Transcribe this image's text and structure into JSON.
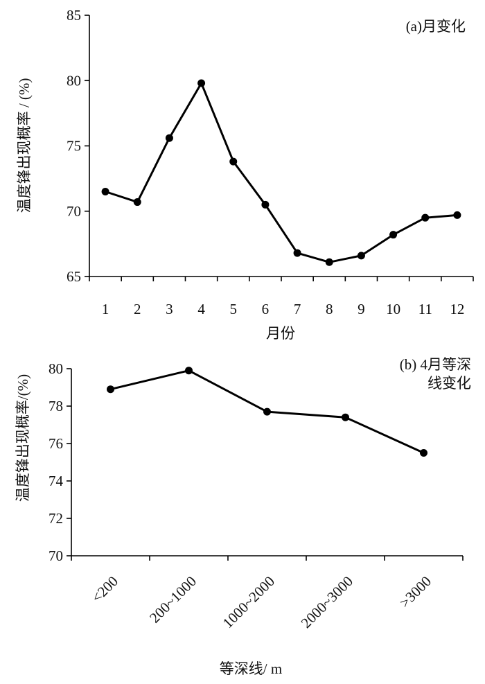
{
  "chart_data": [
    {
      "type": "line",
      "annotation": "(a)月变化",
      "xlabel": "月份",
      "ylabel": "温度锋出现概率 / (%)",
      "categories": [
        "1",
        "2",
        "3",
        "4",
        "5",
        "6",
        "7",
        "8",
        "9",
        "10",
        "11",
        "12"
      ],
      "values": [
        71.5,
        70.7,
        75.6,
        79.8,
        73.8,
        70.5,
        66.8,
        66.1,
        66.6,
        68.2,
        69.5,
        69.7
      ],
      "ylim": [
        65,
        85
      ],
      "yticks": [
        "65",
        "70",
        "75",
        "80",
        "85"
      ],
      "grid": false,
      "color": "#000000"
    },
    {
      "type": "line",
      "annotation_line1": "(b) 4月等深",
      "annotation_line2": "线变化",
      "xlabel": "等深线/ m",
      "ylabel": "温度锋出现概率/(%)",
      "categories": [
        "<200",
        "200~1000",
        "1000~2000",
        "2000~3000",
        ">3000"
      ],
      "values": [
        78.9,
        79.9,
        77.7,
        77.4,
        75.5
      ],
      "ylim": [
        70,
        80
      ],
      "yticks": [
        "70",
        "72",
        "74",
        "76",
        "78",
        "80"
      ],
      "grid": false,
      "color": "#000000"
    }
  ]
}
